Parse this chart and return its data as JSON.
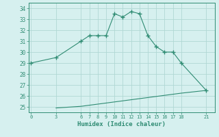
{
  "line1_x": [
    0,
    3,
    6,
    7,
    8,
    9,
    10,
    11,
    12,
    13,
    14,
    15,
    16,
    17,
    18,
    21
  ],
  "line1_y": [
    29,
    29.5,
    31,
    31.5,
    31.5,
    31.5,
    33.5,
    33.2,
    33.7,
    33.5,
    31.5,
    30.5,
    30,
    30,
    29,
    26.5
  ],
  "line2_x": [
    3,
    6,
    7,
    8,
    9,
    10,
    11,
    12,
    13,
    14,
    15,
    16,
    17,
    18,
    21
  ],
  "line2_y": [
    24.9,
    25.05,
    25.15,
    25.25,
    25.35,
    25.45,
    25.55,
    25.65,
    25.75,
    25.85,
    25.95,
    26.05,
    26.15,
    26.25,
    26.5
  ],
  "line_color": "#2e8b72",
  "bg_color": "#d6f0ef",
  "grid_color": "#b0d8d4",
  "xlabel": "Humidex (Indice chaleur)",
  "xticks": [
    0,
    3,
    6,
    7,
    8,
    9,
    10,
    11,
    12,
    13,
    14,
    15,
    16,
    17,
    18,
    21
  ],
  "yticks": [
    25,
    26,
    27,
    28,
    29,
    30,
    31,
    32,
    33,
    34
  ],
  "ylim": [
    24.5,
    34.5
  ],
  "xlim": [
    -0.3,
    22
  ]
}
